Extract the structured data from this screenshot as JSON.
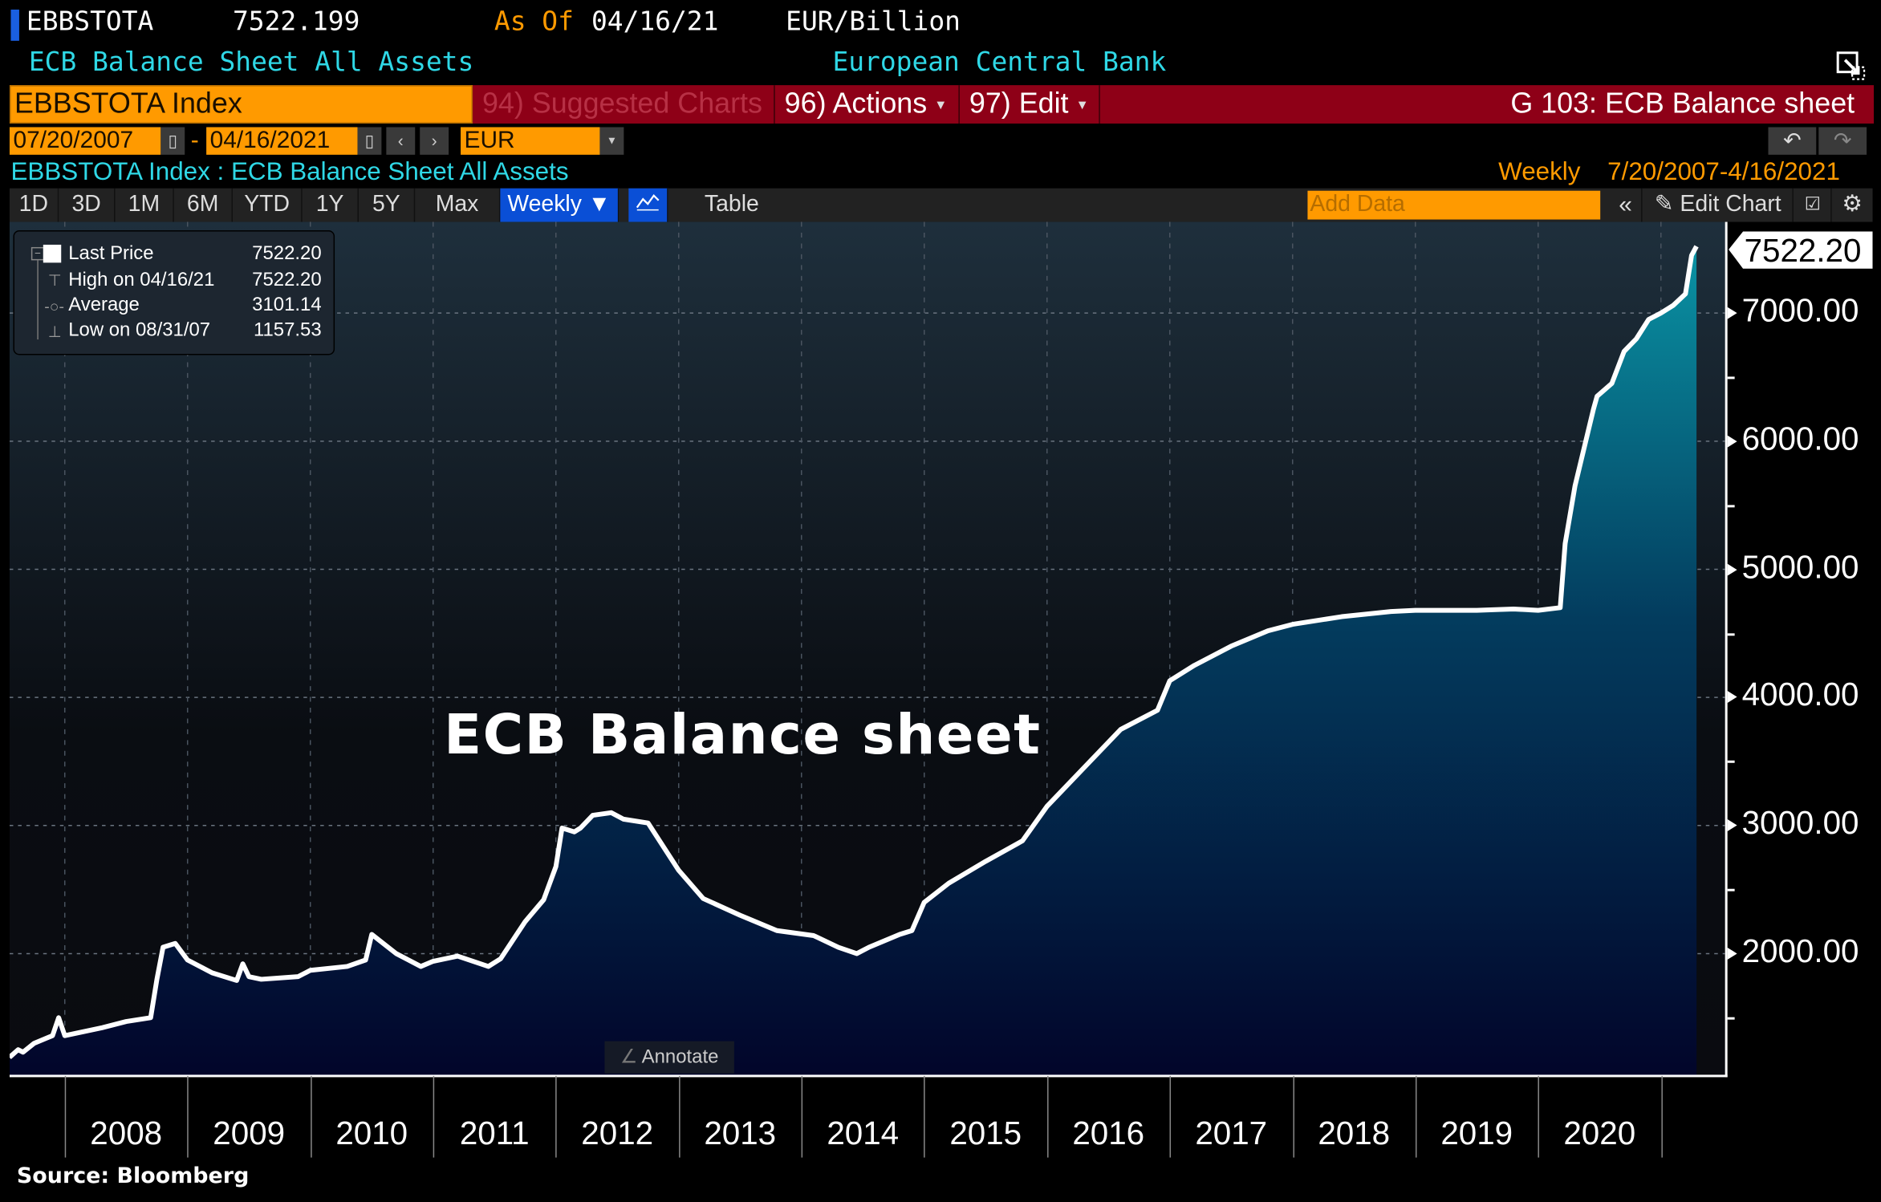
{
  "header": {
    "ticker": "EBBSTOTA",
    "last_value": "7522.199",
    "as_of_label": "As Of",
    "as_of_date": "04/16/21",
    "units": "EUR/Billion",
    "description": "ECB Balance Sheet All Assets",
    "source_org": "European Central Bank"
  },
  "command_bar": {
    "security": "EBBSTOTA Index",
    "suggested_charts": "94) Suggested Charts",
    "actions": "96) Actions",
    "edit": "97) Edit",
    "page_title": "G 103: ECB Balance sheet"
  },
  "date_range": {
    "start": "07/20/2007",
    "separator": "-",
    "end": "04/16/2021",
    "currency": "EUR"
  },
  "chart_header": {
    "title": "EBBSTOTA Index : ECB Balance Sheet All Assets",
    "frequency": "Weekly",
    "range": "7/20/2007-4/16/2021"
  },
  "toolbar": {
    "periods": [
      "1D",
      "3D",
      "1M",
      "6M",
      "YTD",
      "1Y",
      "5Y",
      "Max"
    ],
    "frequency_selected": "Weekly ▼",
    "table_label": "Table",
    "add_data_placeholder": "Add Data",
    "collapse": "«",
    "edit_chart": "Edit Chart"
  },
  "legend": {
    "last_price_label": "Last Price",
    "last_price": "7522.20",
    "high_label": "High on 04/16/21",
    "high": "7522.20",
    "average_label": "Average",
    "average": "3101.14",
    "low_label": "Low on 08/31/07",
    "low": "1157.53"
  },
  "annotation_text": "ECB Balance sheet",
  "annotate_button": "Annotate",
  "last_value_tag": "7522.20",
  "source": "Source: Bloomberg",
  "colors": {
    "accent_amber": "#ff9a00",
    "accent_red": "#8e0017",
    "cyan": "#2fd8e6",
    "selected_tab": "#0a4fd6",
    "line": "#ffffff"
  },
  "chart_data": {
    "type": "area",
    "title": "ECB Balance sheet",
    "series_name": "EBBSTOTA Index - ECB Balance Sheet All Assets (EUR Billion, Weekly)",
    "xlabel": "",
    "ylabel": "EUR/Billion",
    "x_ticks": [
      "2008",
      "2009",
      "2010",
      "2011",
      "2012",
      "2013",
      "2014",
      "2015",
      "2016",
      "2017",
      "2018",
      "2019",
      "2020"
    ],
    "y_ticks": [
      2000,
      3000,
      4000,
      5000,
      6000,
      7000
    ],
    "ylim": [
      1050,
      7700
    ],
    "xlim": [
      2007.55,
      2021.3
    ],
    "grid": true,
    "legend_position": "top-left",
    "x": [
      2007.55,
      2007.62,
      2007.66,
      2007.75,
      2007.85,
      2007.9,
      2007.95,
      2008.0,
      2008.1,
      2008.3,
      2008.5,
      2008.7,
      2008.75,
      2008.8,
      2008.9,
      2009.0,
      2009.2,
      2009.4,
      2009.45,
      2009.5,
      2009.6,
      2009.9,
      2010.0,
      2010.3,
      2010.45,
      2010.5,
      2010.7,
      2010.9,
      2011.0,
      2011.2,
      2011.45,
      2011.55,
      2011.75,
      2011.9,
      2012.0,
      2012.05,
      2012.15,
      2012.2,
      2012.3,
      2012.45,
      2012.55,
      2012.75,
      2013.0,
      2013.2,
      2013.5,
      2013.8,
      2014.1,
      2014.3,
      2014.45,
      2014.55,
      2014.8,
      2014.9,
      2015.0,
      2015.2,
      2015.5,
      2015.8,
      2016.0,
      2016.3,
      2016.6,
      2016.9,
      2017.0,
      2017.2,
      2017.5,
      2017.8,
      2018.0,
      2018.4,
      2018.8,
      2019.0,
      2019.5,
      2019.8,
      2020.0,
      2020.18,
      2020.22,
      2020.3,
      2020.45,
      2020.48,
      2020.6,
      2020.7,
      2020.8,
      2020.9,
      2021.0,
      2021.1,
      2021.2,
      2021.25,
      2021.29
    ],
    "values": [
      1190,
      1250,
      1230,
      1300,
      1340,
      1360,
      1500,
      1360,
      1380,
      1420,
      1470,
      1500,
      1800,
      2050,
      2080,
      1950,
      1850,
      1790,
      1920,
      1820,
      1800,
      1820,
      1870,
      1900,
      1950,
      2150,
      2000,
      1900,
      1940,
      1980,
      1900,
      1960,
      2250,
      2420,
      2680,
      2980,
      2950,
      2980,
      3080,
      3100,
      3050,
      3020,
      2650,
      2430,
      2300,
      2180,
      2140,
      2050,
      2000,
      2050,
      2150,
      2180,
      2400,
      2550,
      2720,
      2880,
      3150,
      3450,
      3750,
      3900,
      4130,
      4250,
      4400,
      4520,
      4570,
      4630,
      4670,
      4680,
      4680,
      4690,
      4680,
      4700,
      5200,
      5650,
      6250,
      6350,
      6450,
      6700,
      6800,
      6950,
      7000,
      7060,
      7150,
      7450,
      7522
    ]
  }
}
